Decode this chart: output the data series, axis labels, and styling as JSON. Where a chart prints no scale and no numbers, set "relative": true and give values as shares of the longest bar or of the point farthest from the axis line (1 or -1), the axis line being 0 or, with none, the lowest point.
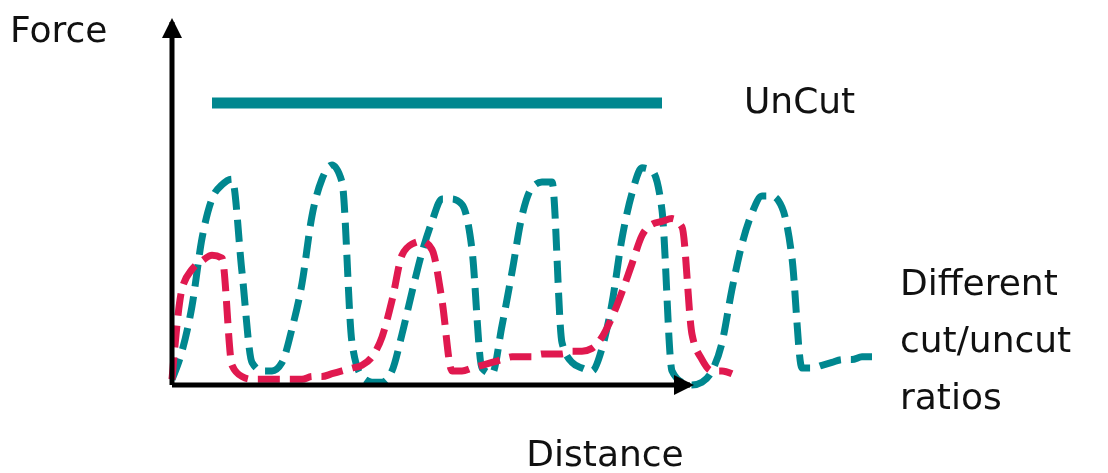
{
  "chart_data": {
    "type": "line",
    "relative": true,
    "xlabel": "Distance",
    "ylabel": "Force",
    "categories": [
      null,
      null,
      null,
      null,
      null,
      null,
      null,
      null,
      null,
      null,
      null,
      null,
      null,
      null,
      null,
      null,
      null,
      null,
      null,
      null,
      null,
      null,
      null,
      null,
      null,
      null,
      null,
      null,
      null,
      null,
      null,
      null,
      null,
      null,
      null,
      null,
      null,
      null,
      null,
      null,
      null,
      null,
      null,
      null,
      null,
      null,
      null,
      null,
      null,
      null,
      null,
      null,
      null,
      null,
      null,
      null,
      null,
      null,
      null,
      null,
      null,
      null,
      null,
      null,
      null,
      null,
      null,
      null,
      null,
      null,
      null
    ],
    "annotations": [
      "Different cut/uncut ratios"
    ],
    "series": [
      {
        "name": "UnCut",
        "color": "#00878f",
        "line_style": "solid",
        "values": [
          null,
          null,
          null,
          null,
          1,
          1,
          1,
          1,
          1,
          1,
          1,
          1,
          1,
          1,
          1,
          1,
          1,
          1,
          1,
          1,
          1,
          1,
          1,
          1,
          1,
          1,
          1,
          1,
          1,
          1,
          1,
          1,
          1,
          1,
          1,
          1,
          1,
          1,
          1,
          1,
          1,
          1,
          1,
          1,
          1,
          1,
          1,
          1,
          1,
          1,
          null,
          null,
          null,
          null,
          null,
          null,
          null,
          null,
          null,
          null,
          null,
          null,
          null,
          null,
          null,
          null,
          null,
          null,
          null,
          null,
          null
        ]
      },
      {
        "color": "#00878f",
        "line_style": "dashed",
        "values": [
          0.02,
          0.12,
          0.28,
          0.52,
          0.66,
          0.71,
          0.73,
          0.4,
          0.08,
          0.05,
          0.05,
          0.08,
          0.2,
          0.36,
          0.6,
          0.73,
          0.78,
          0.72,
          0.15,
          0.03,
          0.01,
          0.01,
          0.05,
          0.18,
          0.33,
          0.47,
          0.58,
          0.66,
          0.66,
          0.64,
          0.48,
          0.06,
          0.04,
          0.21,
          0.4,
          0.6,
          0.7,
          0.72,
          0.72,
          0.15,
          0.08,
          0.06,
          0.05,
          0.13,
          0.29,
          0.52,
          0.68,
          0.77,
          0.76,
          0.62,
          0.05,
          0.01,
          0.0,
          0.01,
          0.05,
          0.15,
          0.34,
          0.5,
          0.61,
          0.67,
          0.67,
          0.63,
          0.45,
          0.06,
          0.06,
          0.07,
          0.08,
          0.09,
          0.09,
          0.1,
          0.1
        ]
      },
      {
        "color": "#e0194f",
        "line_style": "dashed",
        "values": [
          0.02,
          0.34,
          0.41,
          0.44,
          0.46,
          0.45,
          0.07,
          0.03,
          0.02,
          0.02,
          0.02,
          0.02,
          0.02,
          0.02,
          0.03,
          0.03,
          0.04,
          0.05,
          0.06,
          0.07,
          0.1,
          0.17,
          0.3,
          0.46,
          0.5,
          0.51,
          0.48,
          0.3,
          0.05,
          0.05,
          0.06,
          0.07,
          0.08,
          0.09,
          0.1,
          0.1,
          0.1,
          0.11,
          0.11,
          0.11,
          0.12,
          0.12,
          0.13,
          0.17,
          0.24,
          0.33,
          0.43,
          0.53,
          0.57,
          0.58,
          0.59,
          0.56,
          0.18,
          0.09,
          0.05,
          0.05,
          0.04,
          null,
          null,
          null,
          null,
          null,
          null,
          null,
          null,
          null,
          null,
          null,
          null,
          null,
          null
        ]
      }
    ]
  }
}
